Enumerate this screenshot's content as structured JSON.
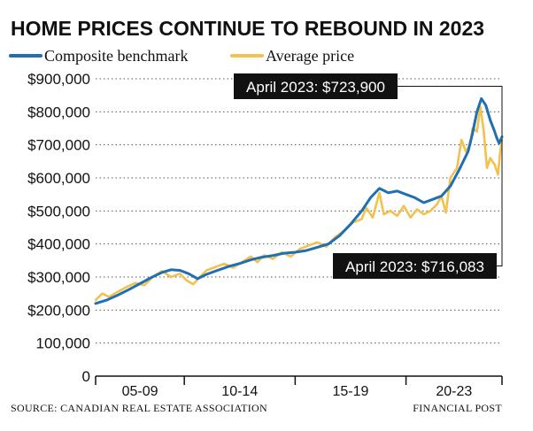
{
  "chart_data": {
    "type": "line",
    "title": "HOME PRICES CONTINUE TO REBOUND IN 2023",
    "source": "SOURCE: CANADIAN REAL ESTATE ASSOCIATION",
    "credit": "FINANCIAL POST",
    "ylim": [
      0,
      900000
    ],
    "y_ticks": [
      {
        "value": 0,
        "label": "0"
      },
      {
        "value": 100000,
        "label": "100,000"
      },
      {
        "value": 200000,
        "label": "$200,000"
      },
      {
        "value": 300000,
        "label": "$300,000"
      },
      {
        "value": 400000,
        "label": "$400,000"
      },
      {
        "value": 500000,
        "label": "$500,000"
      },
      {
        "value": 600000,
        "label": "$600,000"
      },
      {
        "value": 700000,
        "label": "$700,000"
      },
      {
        "value": 800000,
        "label": "$800,000"
      },
      {
        "value": 900000,
        "label": "$900,000"
      }
    ],
    "x_range": [
      2005.0,
      2023.33
    ],
    "x_ticks": [
      2005,
      2009,
      2014,
      2019,
      2023.33
    ],
    "x_period_labels": [
      {
        "label": "05-09",
        "from": 2005,
        "to": 2009
      },
      {
        "label": "10-14",
        "from": 2009,
        "to": 2014
      },
      {
        "label": "15-19",
        "from": 2014,
        "to": 2019
      },
      {
        "label": "20-23",
        "from": 2019,
        "to": 2023.33
      }
    ],
    "grid": "horizontal-dotted",
    "legend_position": "top-left",
    "series": [
      {
        "name": "Composite benchmark",
        "color": "#1f6fb2",
        "points": [
          [
            2005.0,
            220000
          ],
          [
            2005.5,
            230000
          ],
          [
            2006.0,
            245000
          ],
          [
            2006.5,
            262000
          ],
          [
            2007.0,
            280000
          ],
          [
            2007.5,
            298000
          ],
          [
            2008.0,
            314000
          ],
          [
            2008.4,
            322000
          ],
          [
            2008.8,
            320000
          ],
          [
            2009.2,
            310000
          ],
          [
            2009.6,
            295000
          ],
          [
            2010.0,
            308000
          ],
          [
            2010.5,
            320000
          ],
          [
            2011.0,
            332000
          ],
          [
            2011.5,
            341000
          ],
          [
            2012.0,
            352000
          ],
          [
            2012.5,
            360000
          ],
          [
            2013.0,
            365000
          ],
          [
            2013.5,
            372000
          ],
          [
            2014.0,
            375000
          ],
          [
            2014.5,
            380000
          ],
          [
            2015.0,
            390000
          ],
          [
            2015.5,
            400000
          ],
          [
            2016.0,
            425000
          ],
          [
            2016.5,
            460000
          ],
          [
            2017.0,
            500000
          ],
          [
            2017.4,
            540000
          ],
          [
            2017.8,
            568000
          ],
          [
            2018.2,
            555000
          ],
          [
            2018.6,
            560000
          ],
          [
            2019.0,
            550000
          ],
          [
            2019.4,
            540000
          ],
          [
            2019.8,
            525000
          ],
          [
            2020.2,
            535000
          ],
          [
            2020.6,
            545000
          ],
          [
            2021.0,
            575000
          ],
          [
            2021.4,
            625000
          ],
          [
            2021.8,
            680000
          ],
          [
            2022.0,
            735000
          ],
          [
            2022.2,
            800000
          ],
          [
            2022.4,
            840000
          ],
          [
            2022.6,
            820000
          ],
          [
            2022.8,
            775000
          ],
          [
            2023.0,
            740000
          ],
          [
            2023.1,
            720000
          ],
          [
            2023.2,
            705000
          ],
          [
            2023.33,
            723900
          ]
        ],
        "callout": "April 2023: $723,900"
      },
      {
        "name": "Average price",
        "color": "#f2c14e",
        "points": [
          [
            2005.0,
            230000
          ],
          [
            2005.3,
            250000
          ],
          [
            2005.6,
            240000
          ],
          [
            2006.0,
            255000
          ],
          [
            2006.4,
            270000
          ],
          [
            2006.8,
            282000
          ],
          [
            2007.2,
            275000
          ],
          [
            2007.6,
            302000
          ],
          [
            2008.0,
            318000
          ],
          [
            2008.4,
            300000
          ],
          [
            2008.8,
            310000
          ],
          [
            2009.1,
            290000
          ],
          [
            2009.4,
            278000
          ],
          [
            2009.7,
            300000
          ],
          [
            2010.0,
            320000
          ],
          [
            2010.4,
            330000
          ],
          [
            2010.8,
            340000
          ],
          [
            2011.2,
            328000
          ],
          [
            2011.6,
            345000
          ],
          [
            2012.0,
            362000
          ],
          [
            2012.3,
            345000
          ],
          [
            2012.6,
            366000
          ],
          [
            2013.0,
            355000
          ],
          [
            2013.4,
            375000
          ],
          [
            2013.8,
            362000
          ],
          [
            2014.2,
            385000
          ],
          [
            2014.6,
            395000
          ],
          [
            2015.0,
            405000
          ],
          [
            2015.4,
            392000
          ],
          [
            2015.8,
            420000
          ],
          [
            2016.2,
            440000
          ],
          [
            2016.6,
            465000
          ],
          [
            2017.0,
            475000
          ],
          [
            2017.2,
            510000
          ],
          [
            2017.5,
            480000
          ],
          [
            2017.8,
            555000
          ],
          [
            2018.0,
            490000
          ],
          [
            2018.3,
            500000
          ],
          [
            2018.6,
            485000
          ],
          [
            2018.9,
            515000
          ],
          [
            2019.2,
            480000
          ],
          [
            2019.5,
            505000
          ],
          [
            2019.8,
            490000
          ],
          [
            2020.1,
            500000
          ],
          [
            2020.4,
            520000
          ],
          [
            2020.6,
            545000
          ],
          [
            2020.8,
            495000
          ],
          [
            2021.0,
            600000
          ],
          [
            2021.3,
            630000
          ],
          [
            2021.5,
            715000
          ],
          [
            2021.7,
            680000
          ],
          [
            2021.9,
            700000
          ],
          [
            2022.0,
            750000
          ],
          [
            2022.2,
            740000
          ],
          [
            2022.35,
            815000
          ],
          [
            2022.5,
            745000
          ],
          [
            2022.65,
            630000
          ],
          [
            2022.8,
            660000
          ],
          [
            2023.0,
            640000
          ],
          [
            2023.15,
            610000
          ],
          [
            2023.25,
            680000
          ],
          [
            2023.33,
            716083
          ]
        ],
        "callout": "April 2023: $716,083"
      }
    ]
  }
}
